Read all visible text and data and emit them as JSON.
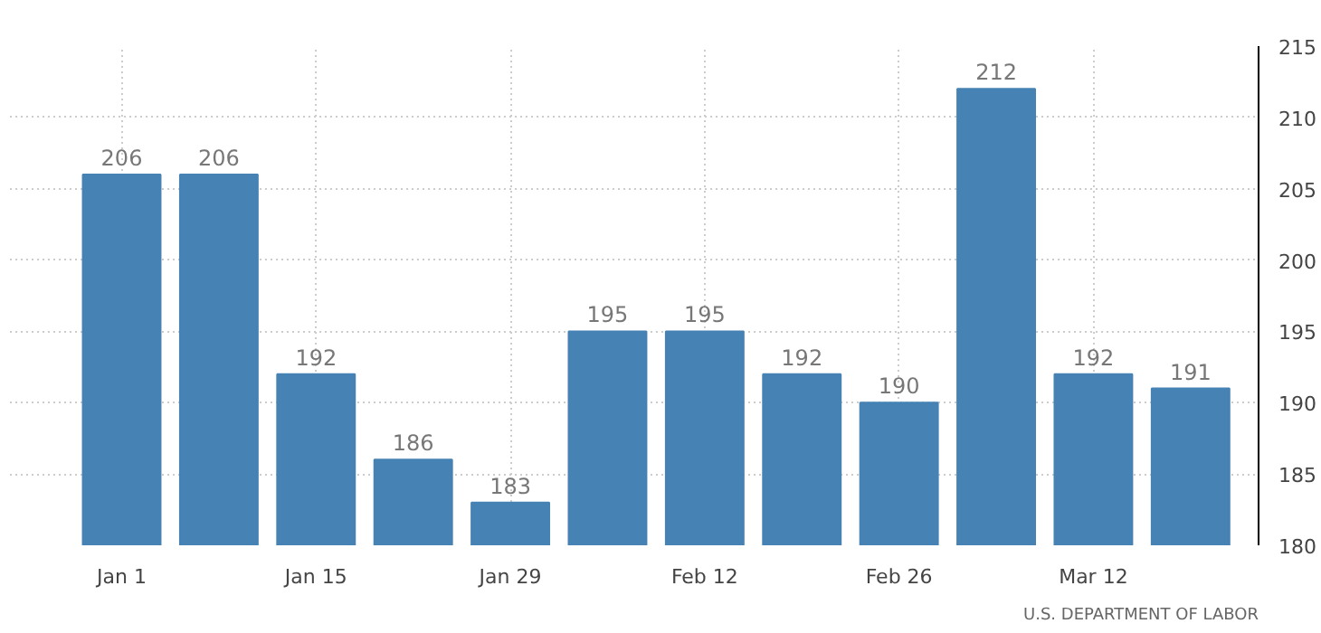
{
  "chart_data": {
    "type": "bar",
    "categories": [
      "Jan 1",
      null,
      "Jan 15",
      null,
      "Jan 29",
      null,
      "Feb 12",
      null,
      "Feb 26",
      null,
      "Mar 12",
      null
    ],
    "values": [
      206,
      206,
      192,
      186,
      183,
      195,
      195,
      192,
      190,
      212,
      192,
      191
    ],
    "color": "#4682b4",
    "ylim": [
      180,
      215
    ],
    "yticks": [
      180,
      185,
      190,
      195,
      200,
      205,
      210,
      215
    ],
    "grid": true,
    "data_labels": true,
    "annotations": [
      "U.S. DEPARTMENT OF LABOR"
    ]
  }
}
